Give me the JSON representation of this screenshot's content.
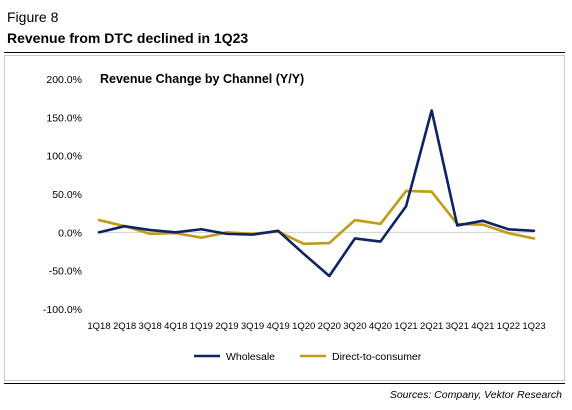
{
  "figure_label": "Figure 8",
  "figure_title": "Revenue from DTC declined in 1Q23",
  "source_note": "Sources: Company, Vektor Research",
  "chart_data": {
    "type": "line",
    "title": "Revenue Change by Channel (Y/Y)",
    "xlabel": "",
    "ylabel": "",
    "categories": [
      "1Q18",
      "2Q18",
      "3Q18",
      "4Q18",
      "1Q19",
      "2Q19",
      "3Q19",
      "4Q19",
      "1Q20",
      "2Q20",
      "3Q20",
      "4Q20",
      "1Q21",
      "2Q21",
      "3Q21",
      "4Q21",
      "1Q22",
      "1Q23"
    ],
    "ylim": [
      -100,
      200
    ],
    "yticks": [
      -100,
      -50,
      0,
      50,
      100,
      150,
      200
    ],
    "ytick_labels": [
      "-100.0%",
      "-50.0%",
      "0.0%",
      "50.0%",
      "100.0%",
      "150.0%",
      "200.0%"
    ],
    "grid": false,
    "legend_position": "bottom-center",
    "series": [
      {
        "name": "Wholesale",
        "color": "#0d2461",
        "values": [
          0,
          8,
          3,
          0,
          4,
          -2,
          -3,
          2,
          -28,
          -57,
          -8,
          -12,
          34,
          159,
          9,
          15,
          4,
          2
        ]
      },
      {
        "name": "Direct-to-consumer",
        "color": "#c29a16",
        "values": [
          16,
          8,
          -2,
          -1,
          -7,
          0,
          -2,
          1,
          -15,
          -14,
          16,
          11,
          54,
          53,
          11,
          10,
          -1,
          -8
        ]
      }
    ]
  }
}
